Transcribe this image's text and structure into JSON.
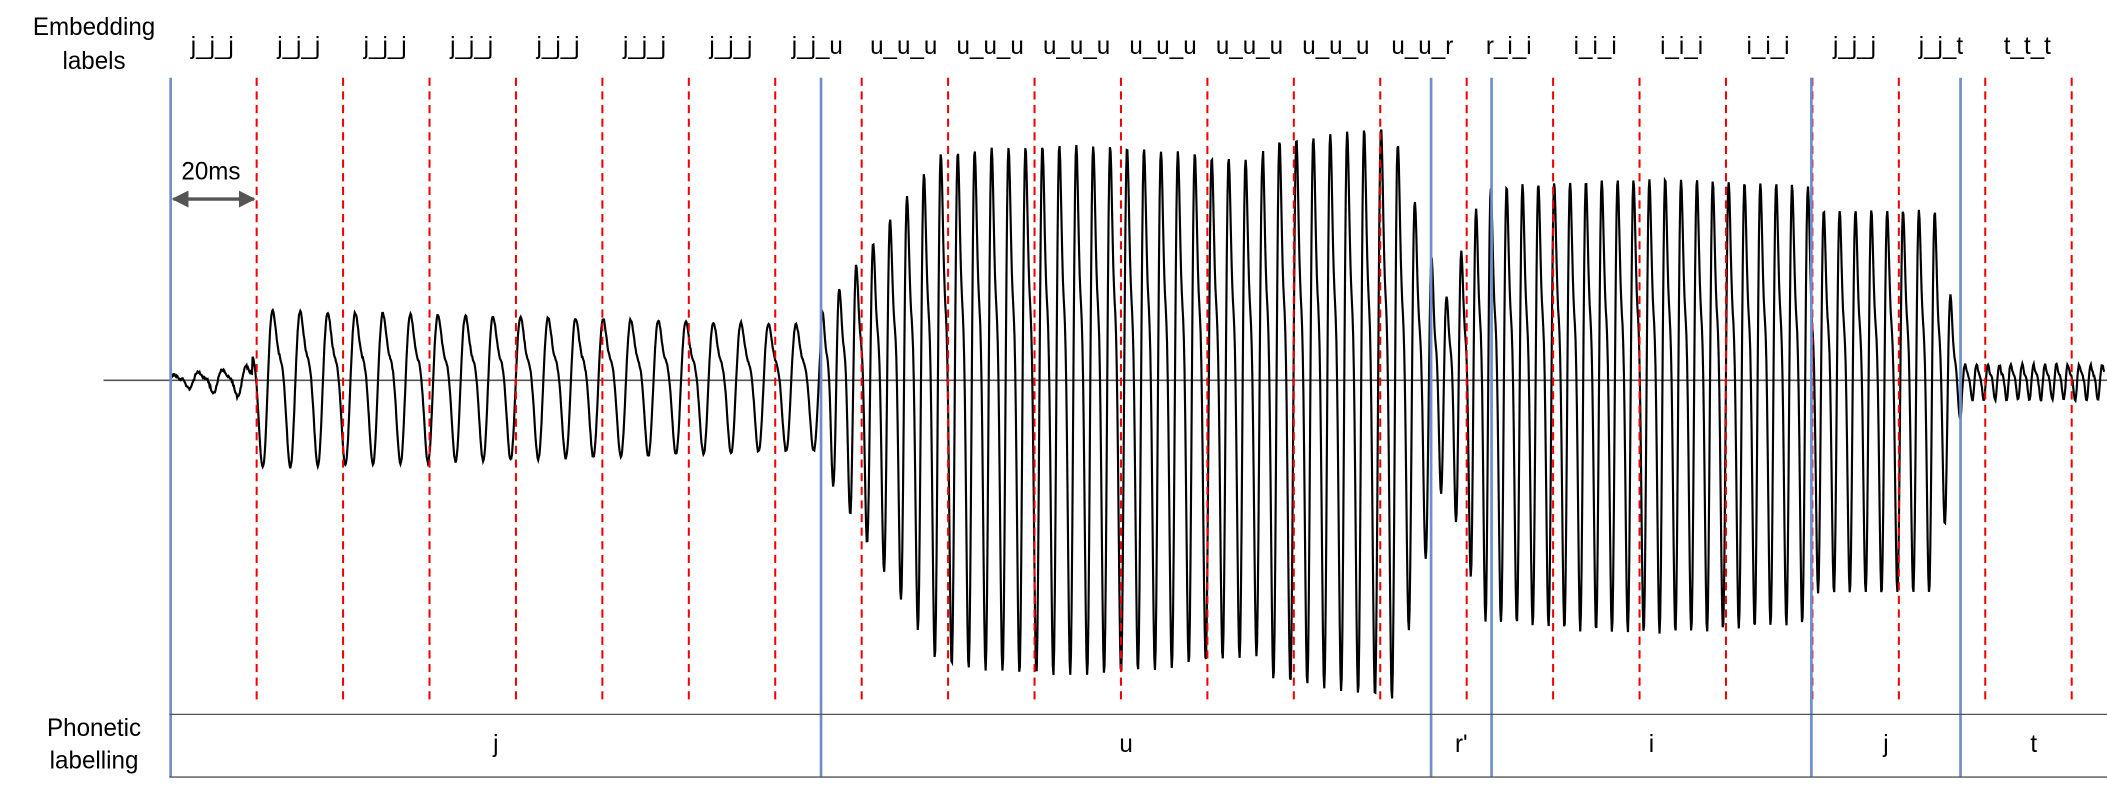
{
  "header": {
    "embedding_title": [
      "Embedding",
      "labels"
    ],
    "phonetic_title": [
      "Phonetic",
      "labelling"
    ]
  },
  "duration_marker": "20ms",
  "embedding_labels": [
    "j_j_j",
    "j_j_j",
    "j_j_j",
    "j_j_j",
    "j_j_j",
    "j_j_j",
    "j_j_j",
    "j_j_u",
    "u_u_u",
    "u_u_u",
    "u_u_u",
    "u_u_u",
    "u_u_u",
    "u_u_u",
    "u_u_r",
    "r_i_i",
    "i_i_i",
    "i_i_i",
    "i_i_i",
    "j_j_j",
    "j_j_t",
    "t_t_t"
  ],
  "phonetic_labels": [
    "j",
    "u",
    "r'",
    "i",
    "j",
    "t"
  ]
}
